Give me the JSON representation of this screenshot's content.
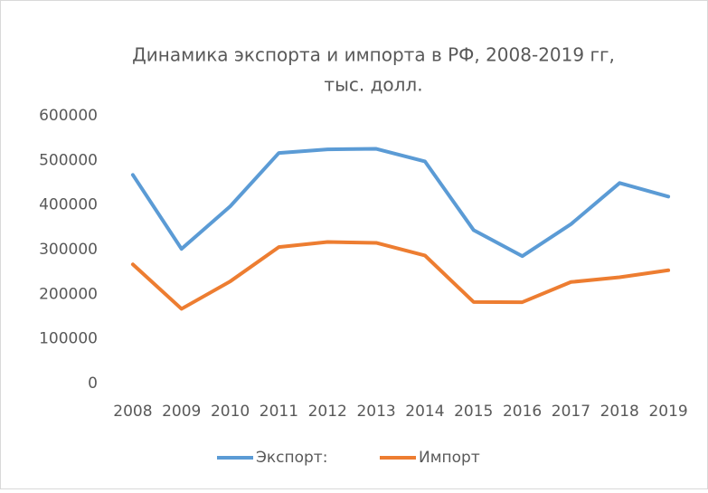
{
  "chart_data": {
    "type": "line",
    "title": [
      "Динамика экспорта и импорта в РФ, 2008-2019 гг,",
      "тыс. долл."
    ],
    "categories": [
      "2008",
      "2009",
      "2010",
      "2011",
      "2012",
      "2013",
      "2014",
      "2015",
      "2016",
      "2017",
      "2018",
      "2019"
    ],
    "series": [
      {
        "name": "Экспорт:",
        "color": "#5b9bd5",
        "values": [
          467581,
          301667,
          397068,
          516718,
          524735,
          525976,
          497834,
          343908,
          285491,
          357083,
          449347,
          418996
        ]
      },
      {
        "name": "Импорт",
        "color": "#ed7d31",
        "values": [
          267051,
          167348,
          228912,
          305760,
          317263,
          315298,
          287063,
          182782,
          182261,
          227464,
          238151,
          253876
        ]
      }
    ],
    "ylim": [
      0,
      600000
    ],
    "yticks": [
      0,
      100000,
      200000,
      300000,
      400000,
      500000,
      600000
    ],
    "grid": false,
    "legend": "bottom"
  }
}
